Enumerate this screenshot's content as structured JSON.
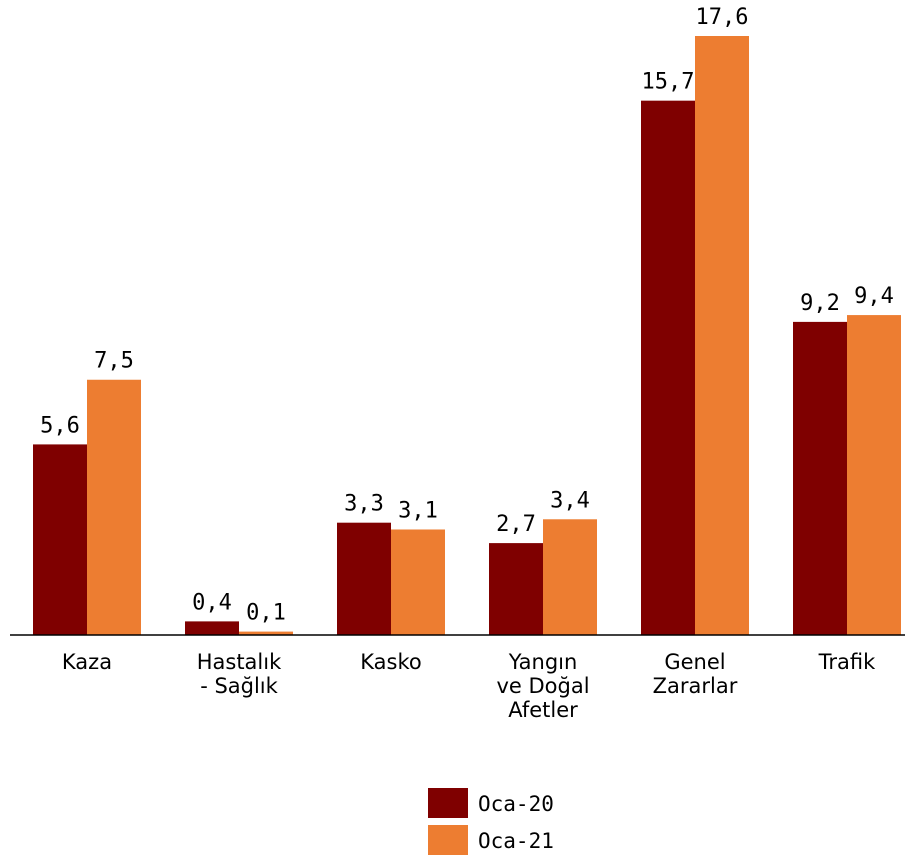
{
  "chart_data": {
    "type": "bar",
    "categories": [
      [
        "Kaza"
      ],
      [
        "Hastalık",
        "- Sağlık"
      ],
      [
        "Kasko"
      ],
      [
        "Yangın",
        "ve Doğal",
        "Afetler"
      ],
      [
        "Genel",
        "Zararlar"
      ],
      [
        "Trafik"
      ]
    ],
    "series": [
      {
        "name": "Oca-20",
        "color": "#7f0000",
        "values": [
          5.6,
          0.4,
          3.3,
          2.7,
          15.7,
          9.2
        ],
        "labels": [
          "5,6",
          "0,4",
          "3,3",
          "2,7",
          "15,7",
          "9,2"
        ]
      },
      {
        "name": "Oca-21",
        "color": "#ed7d31",
        "values": [
          7.5,
          0.1,
          3.1,
          3.4,
          17.6,
          9.4
        ],
        "labels": [
          "7,5",
          "0,1",
          "3,1",
          "3,4",
          "17,6",
          "9,4"
        ]
      }
    ],
    "ylim": [
      0,
      17.6
    ],
    "grid": false,
    "legend_position": "bottom"
  }
}
